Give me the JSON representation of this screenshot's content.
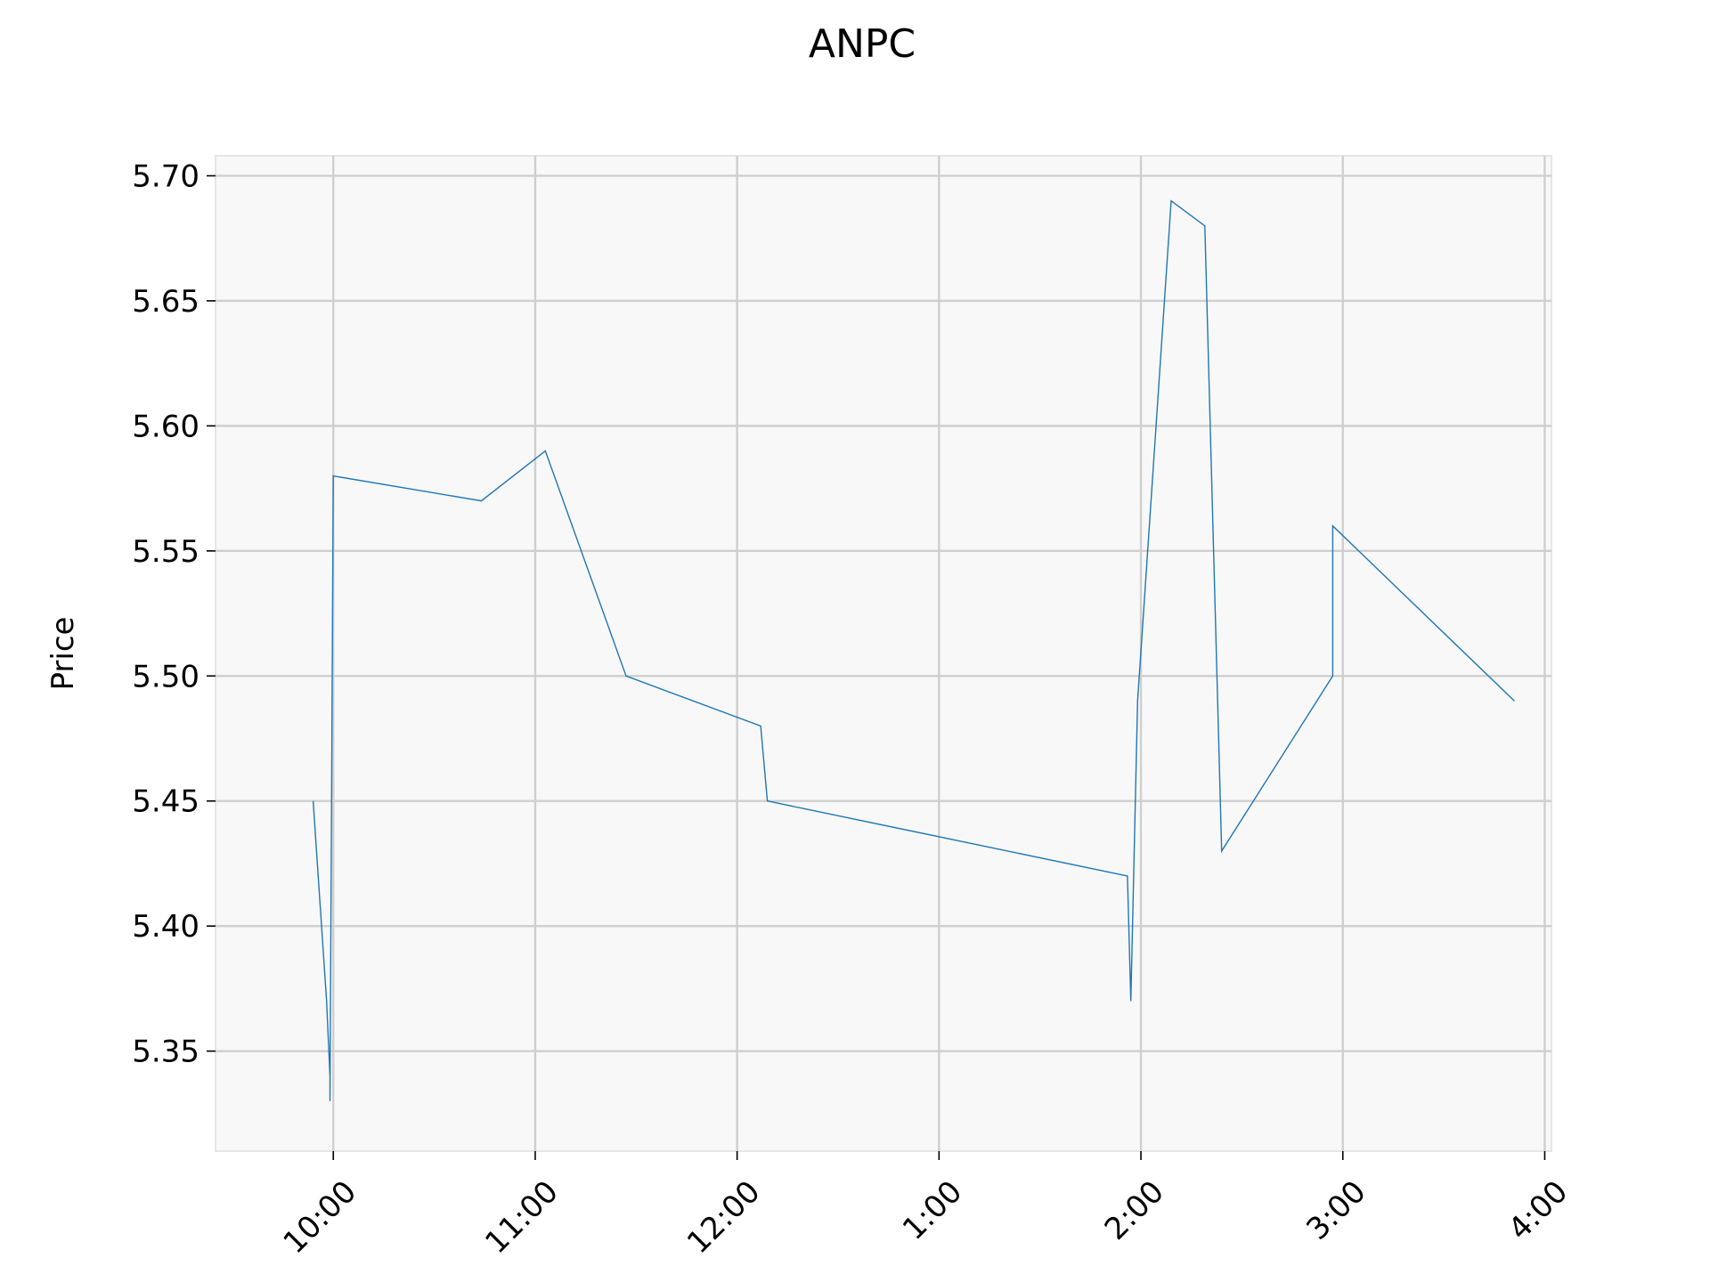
{
  "chart_data": {
    "type": "line",
    "title": "ANPC",
    "ylabel": "Price",
    "xlabel": "",
    "x_ticks": [
      "10:00",
      "11:00",
      "12:00",
      "1:00",
      "2:00",
      "3:00",
      "4:00"
    ],
    "y_ticks": [
      "5.35",
      "5.40",
      "5.45",
      "5.50",
      "5.55",
      "5.60",
      "5.65",
      "5.70"
    ],
    "grid": true,
    "series": [
      {
        "x": [
          "9:54",
          "9:58",
          "9:59",
          "9:59",
          "10:00",
          "10:44",
          "11:03",
          "11:27",
          "12:07",
          "12:09",
          "1:56",
          "1:57",
          "1:59",
          "2:09",
          "2:19",
          "2:24",
          "2:57",
          "2:57",
          "3:51"
        ],
        "values": [
          5.45,
          5.37,
          5.34,
          5.33,
          5.58,
          5.57,
          5.59,
          5.5,
          5.48,
          5.45,
          5.42,
          5.37,
          5.49,
          5.69,
          5.68,
          5.43,
          5.5,
          5.56,
          5.49
        ]
      }
    ],
    "colors": {
      "line": "#1f77b4",
      "grid": "#cfcfcf",
      "plot_background": "#f8f8f8"
    }
  }
}
